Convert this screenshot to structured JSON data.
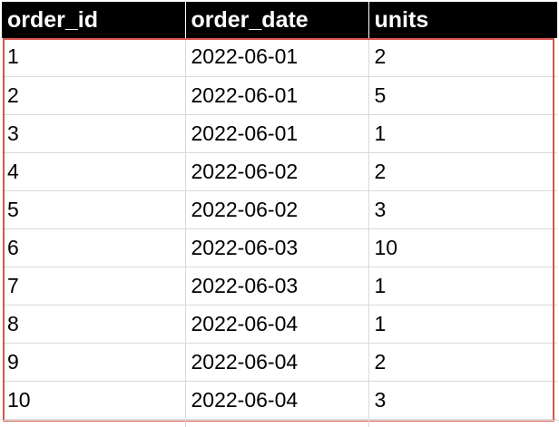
{
  "table": {
    "columns": [
      "order_id",
      "order_date",
      "units"
    ],
    "rows": [
      [
        "1",
        "2022-06-01",
        "2"
      ],
      [
        "2",
        "2022-06-01",
        "5"
      ],
      [
        "3",
        "2022-06-01",
        "1"
      ],
      [
        "4",
        "2022-06-02",
        "2"
      ],
      [
        "5",
        "2022-06-02",
        "3"
      ],
      [
        "6",
        "2022-06-03",
        "10"
      ],
      [
        "7",
        "2022-06-03",
        "1"
      ],
      [
        "8",
        "2022-06-04",
        "1"
      ],
      [
        "9",
        "2022-06-04",
        "2"
      ],
      [
        "10",
        "2022-06-04",
        "3"
      ]
    ]
  },
  "colors": {
    "header_background": "#000000",
    "header_text": "#ffffff",
    "selection_border": "#d9534f",
    "gridline": "#d9d9d9"
  }
}
